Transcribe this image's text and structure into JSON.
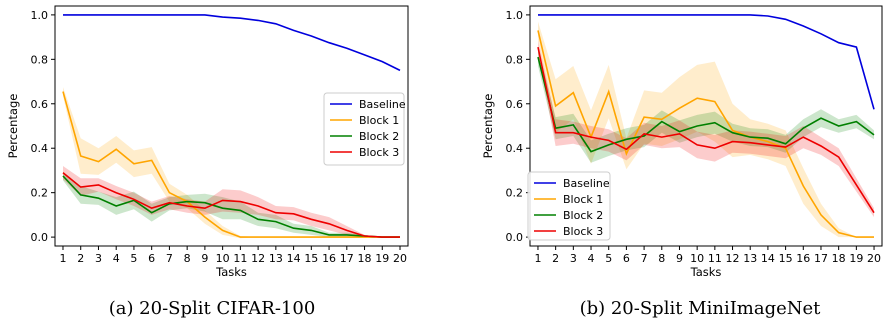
{
  "chart_data": [
    {
      "type": "line",
      "caption": "(a) 20-Split CIFAR-100",
      "xlabel": "Tasks",
      "ylabel": "Percentage",
      "ylim": [
        -0.04,
        1.04
      ],
      "yticks": [
        0.0,
        0.2,
        0.4,
        0.6,
        0.8,
        1.0
      ],
      "x": [
        1,
        2,
        3,
        4,
        5,
        6,
        7,
        8,
        9,
        10,
        11,
        12,
        13,
        14,
        15,
        16,
        17,
        18,
        19,
        20
      ],
      "legend_position": "center-right",
      "series": [
        {
          "name": "Baseline",
          "color": "#0000dd",
          "values": [
            1.0,
            1.0,
            1.0,
            1.0,
            1.0,
            1.0,
            1.0,
            1.0,
            1.0,
            0.99,
            0.985,
            0.975,
            0.96,
            0.93,
            0.905,
            0.875,
            0.85,
            0.82,
            0.79,
            0.75
          ]
        },
        {
          "name": "Block 1",
          "color": "#ffa500",
          "values": [
            0.655,
            0.365,
            0.34,
            0.395,
            0.33,
            0.345,
            0.2,
            0.16,
            0.09,
            0.03,
            0.0,
            0.0,
            0.0,
            0.0,
            0.0,
            0.0,
            0.0,
            0.0,
            0.0,
            0.0
          ],
          "band": [
            0.02,
            0.08,
            0.06,
            0.06,
            0.06,
            0.06,
            0.04,
            0.03,
            0.03,
            0.02,
            0.005,
            0.0,
            0.0,
            0.0,
            0.0,
            0.0,
            0.0,
            0.0,
            0.0,
            0.0
          ]
        },
        {
          "name": "Block 2",
          "color": "#008000",
          "values": [
            0.275,
            0.19,
            0.175,
            0.14,
            0.165,
            0.11,
            0.15,
            0.16,
            0.155,
            0.13,
            0.12,
            0.08,
            0.07,
            0.04,
            0.03,
            0.01,
            0.01,
            0.005,
            0.0,
            0.0
          ],
          "band": [
            0.02,
            0.04,
            0.03,
            0.04,
            0.04,
            0.04,
            0.03,
            0.03,
            0.04,
            0.05,
            0.04,
            0.03,
            0.03,
            0.02,
            0.02,
            0.01,
            0.01,
            0.005,
            0.0,
            0.0
          ]
        },
        {
          "name": "Block 3",
          "color": "#ee0000",
          "values": [
            0.29,
            0.225,
            0.235,
            0.2,
            0.17,
            0.13,
            0.155,
            0.14,
            0.13,
            0.165,
            0.16,
            0.14,
            0.11,
            0.105,
            0.08,
            0.06,
            0.03,
            0.005,
            0.0,
            0.0
          ],
          "band": [
            0.03,
            0.04,
            0.03,
            0.03,
            0.03,
            0.03,
            0.03,
            0.03,
            0.03,
            0.05,
            0.05,
            0.04,
            0.03,
            0.03,
            0.03,
            0.03,
            0.02,
            0.005,
            0.0,
            0.0
          ]
        }
      ]
    },
    {
      "type": "line",
      "caption": "(b) 20-Split MiniImageNet",
      "xlabel": "Tasks",
      "ylabel": "Percentage",
      "ylim": [
        -0.04,
        1.04
      ],
      "yticks": [
        0.0,
        0.2,
        0.4,
        0.6,
        0.8,
        1.0
      ],
      "x": [
        1,
        2,
        3,
        4,
        5,
        6,
        7,
        8,
        9,
        10,
        11,
        12,
        13,
        14,
        15,
        16,
        17,
        18,
        19,
        20
      ],
      "legend_position": "lower-left",
      "series": [
        {
          "name": "Baseline",
          "color": "#0000dd",
          "values": [
            1.0,
            1.0,
            1.0,
            1.0,
            1.0,
            1.0,
            1.0,
            1.0,
            1.0,
            1.0,
            1.0,
            1.0,
            1.0,
            0.995,
            0.98,
            0.95,
            0.915,
            0.875,
            0.855,
            0.575
          ]
        },
        {
          "name": "Block 1",
          "color": "#ffa500",
          "values": [
            0.93,
            0.59,
            0.65,
            0.45,
            0.655,
            0.375,
            0.54,
            0.53,
            0.58,
            0.625,
            0.61,
            0.48,
            0.45,
            0.43,
            0.4,
            0.23,
            0.1,
            0.02,
            0.0,
            0.0
          ],
          "band": [
            0.04,
            0.12,
            0.12,
            0.12,
            0.12,
            0.07,
            0.12,
            0.12,
            0.14,
            0.15,
            0.18,
            0.12,
            0.08,
            0.08,
            0.08,
            0.08,
            0.05,
            0.02,
            0.0,
            0.0
          ]
        },
        {
          "name": "Block 2",
          "color": "#008000",
          "values": [
            0.81,
            0.49,
            0.505,
            0.385,
            0.415,
            0.44,
            0.455,
            0.52,
            0.475,
            0.5,
            0.515,
            0.47,
            0.45,
            0.445,
            0.42,
            0.49,
            0.535,
            0.5,
            0.52,
            0.46
          ],
          "band": [
            0.04,
            0.05,
            0.05,
            0.05,
            0.05,
            0.05,
            0.05,
            0.05,
            0.05,
            0.05,
            0.05,
            0.04,
            0.04,
            0.04,
            0.04,
            0.04,
            0.04,
            0.03,
            0.03,
            0.02
          ]
        },
        {
          "name": "Block 3",
          "color": "#ee0000",
          "values": [
            0.855,
            0.47,
            0.47,
            0.45,
            0.435,
            0.395,
            0.465,
            0.45,
            0.465,
            0.415,
            0.4,
            0.43,
            0.425,
            0.415,
            0.405,
            0.45,
            0.41,
            0.36,
            0.235,
            0.11
          ],
          "band": [
            0.03,
            0.06,
            0.05,
            0.05,
            0.05,
            0.05,
            0.05,
            0.05,
            0.06,
            0.06,
            0.06,
            0.05,
            0.05,
            0.05,
            0.05,
            0.05,
            0.04,
            0.04,
            0.03,
            0.02
          ]
        }
      ]
    }
  ]
}
